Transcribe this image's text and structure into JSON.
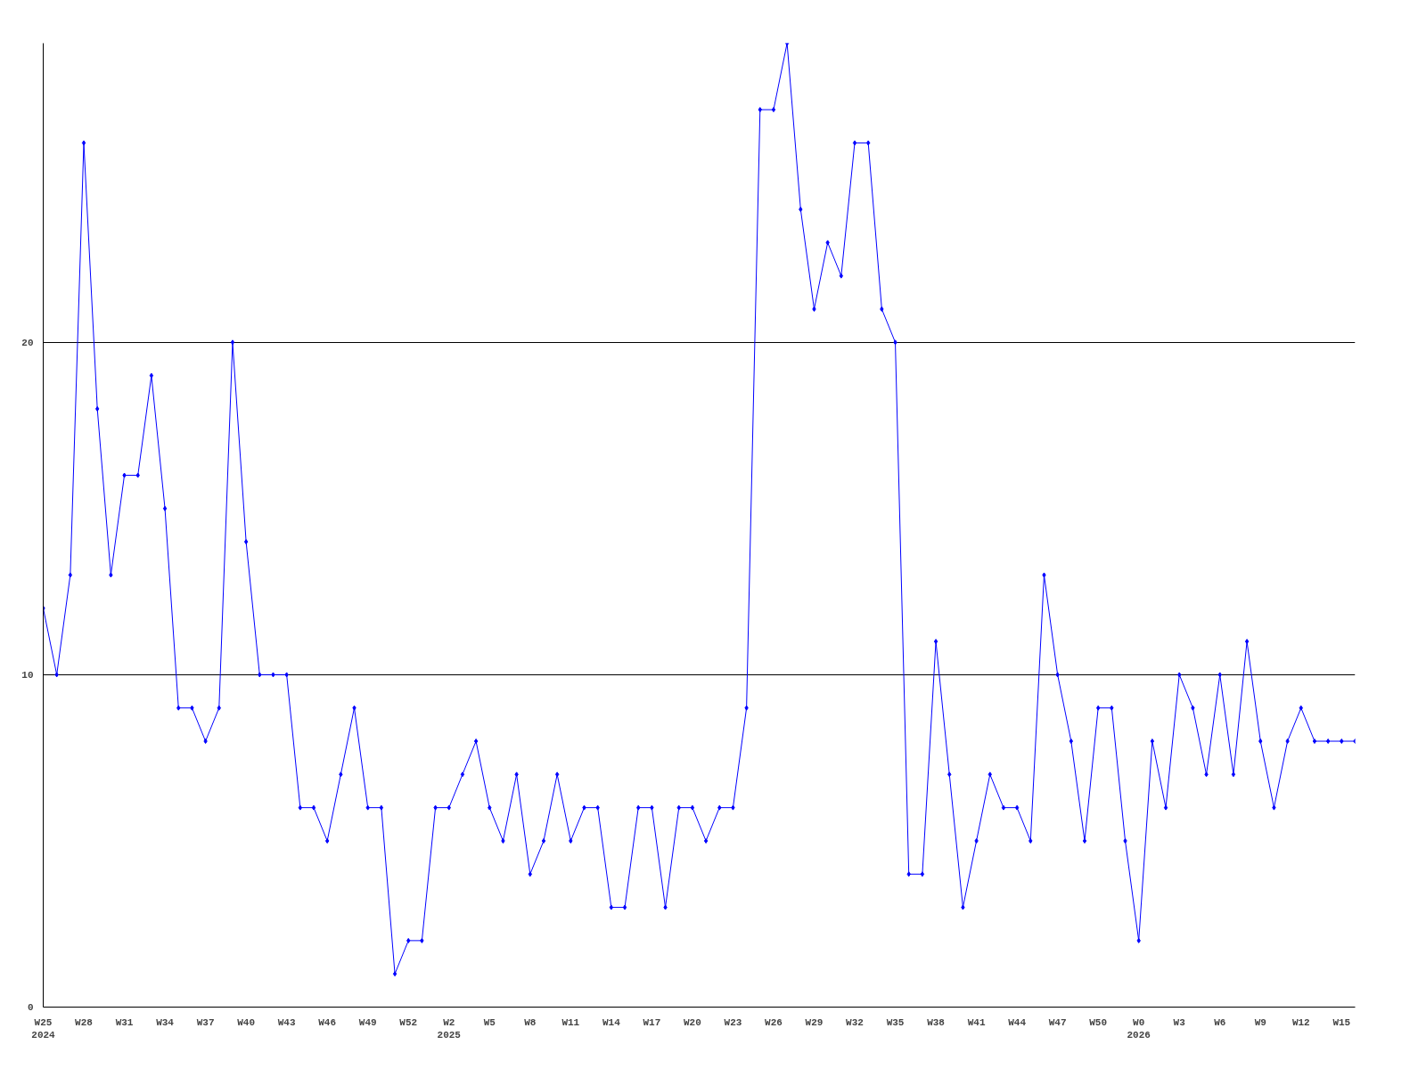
{
  "chart_data": {
    "type": "line",
    "categories": [
      "W25\n2024",
      null,
      null,
      "W28",
      null,
      null,
      "W31",
      null,
      null,
      "W34",
      null,
      null,
      "W37",
      null,
      null,
      "W40",
      null,
      null,
      "W43",
      null,
      null,
      "W46",
      null,
      null,
      "W49",
      null,
      null,
      "W52",
      null,
      null,
      "W2\n2025",
      null,
      null,
      "W5",
      null,
      null,
      "W8",
      null,
      null,
      "W11",
      null,
      null,
      "W14",
      null,
      null,
      "W17",
      null,
      null,
      "W20",
      null,
      null,
      "W23",
      null,
      null,
      "W26",
      null,
      null,
      "W29",
      null,
      null,
      "W32",
      null,
      null,
      "W35",
      null,
      null,
      "W38",
      null,
      null,
      "W41",
      null,
      null,
      "W44",
      null,
      null,
      "W47",
      null,
      null,
      "W50",
      null,
      null,
      "W0\n2026",
      null,
      null,
      "W3",
      null,
      null,
      "W6",
      null,
      null,
      "W9",
      null,
      null,
      "W12",
      null,
      null,
      "W15",
      null
    ],
    "series": [
      {
        "color": "#0000ff",
        "values": [
          12,
          10,
          13,
          26,
          18,
          13,
          16,
          16,
          19,
          15,
          9,
          9,
          8,
          9,
          20,
          14,
          10,
          10,
          10,
          6,
          6,
          5,
          7,
          9,
          6,
          6,
          1,
          2,
          2,
          6,
          6,
          7,
          8,
          6,
          5,
          7,
          4,
          5,
          7,
          5,
          6,
          6,
          3,
          3,
          6,
          6,
          3,
          6,
          6,
          5,
          6,
          6,
          9,
          27,
          27,
          29,
          24,
          21,
          23,
          22,
          26,
          26,
          21,
          20,
          4,
          4,
          11,
          7,
          3,
          5,
          7,
          6,
          6,
          5,
          13,
          10,
          8,
          5,
          9,
          9,
          5,
          2,
          8,
          6,
          10,
          9,
          7,
          10,
          7,
          11,
          8,
          6,
          8,
          9,
          8,
          8,
          8,
          8
        ]
      }
    ],
    "ylim": [
      0,
      29
    ],
    "yticks": [
      0,
      10,
      20
    ],
    "grid": "y",
    "marker": "diamond",
    "line_style": "solid"
  }
}
